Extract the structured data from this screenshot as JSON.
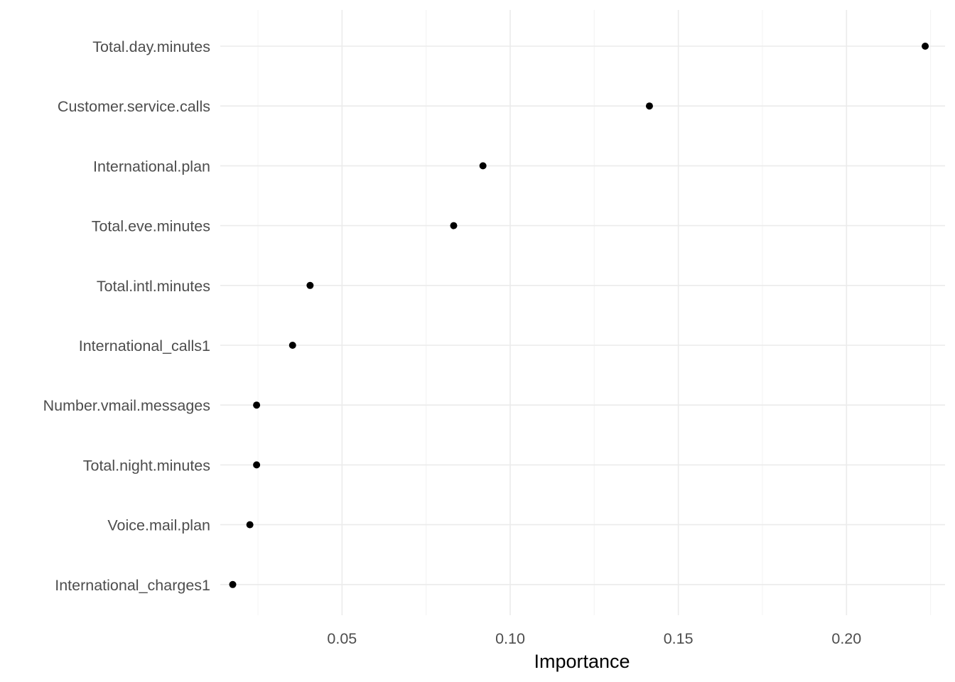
{
  "chart_data": {
    "type": "scatter",
    "title": "",
    "xlabel": "Importance",
    "ylabel": "",
    "x_ticks": [
      "0.05",
      "0.10",
      "0.15",
      "0.20"
    ],
    "xlim": [
      0.0138,
      0.2293
    ],
    "grid": true,
    "legend": "none",
    "point_color": "#000000",
    "categories": [
      "Total.day.minutes",
      "Customer.service.calls",
      "International.plan",
      "Total.eve.minutes",
      "Total.intl.minutes",
      "International_calls1",
      "Number.vmail.messages",
      "Total.night.minutes",
      "Voice.mail.plan",
      "International_charges1"
    ],
    "values": [
      0.2234,
      0.1414,
      0.0919,
      0.0832,
      0.0405,
      0.0353,
      0.0246,
      0.0246,
      0.0226,
      0.0175
    ]
  }
}
